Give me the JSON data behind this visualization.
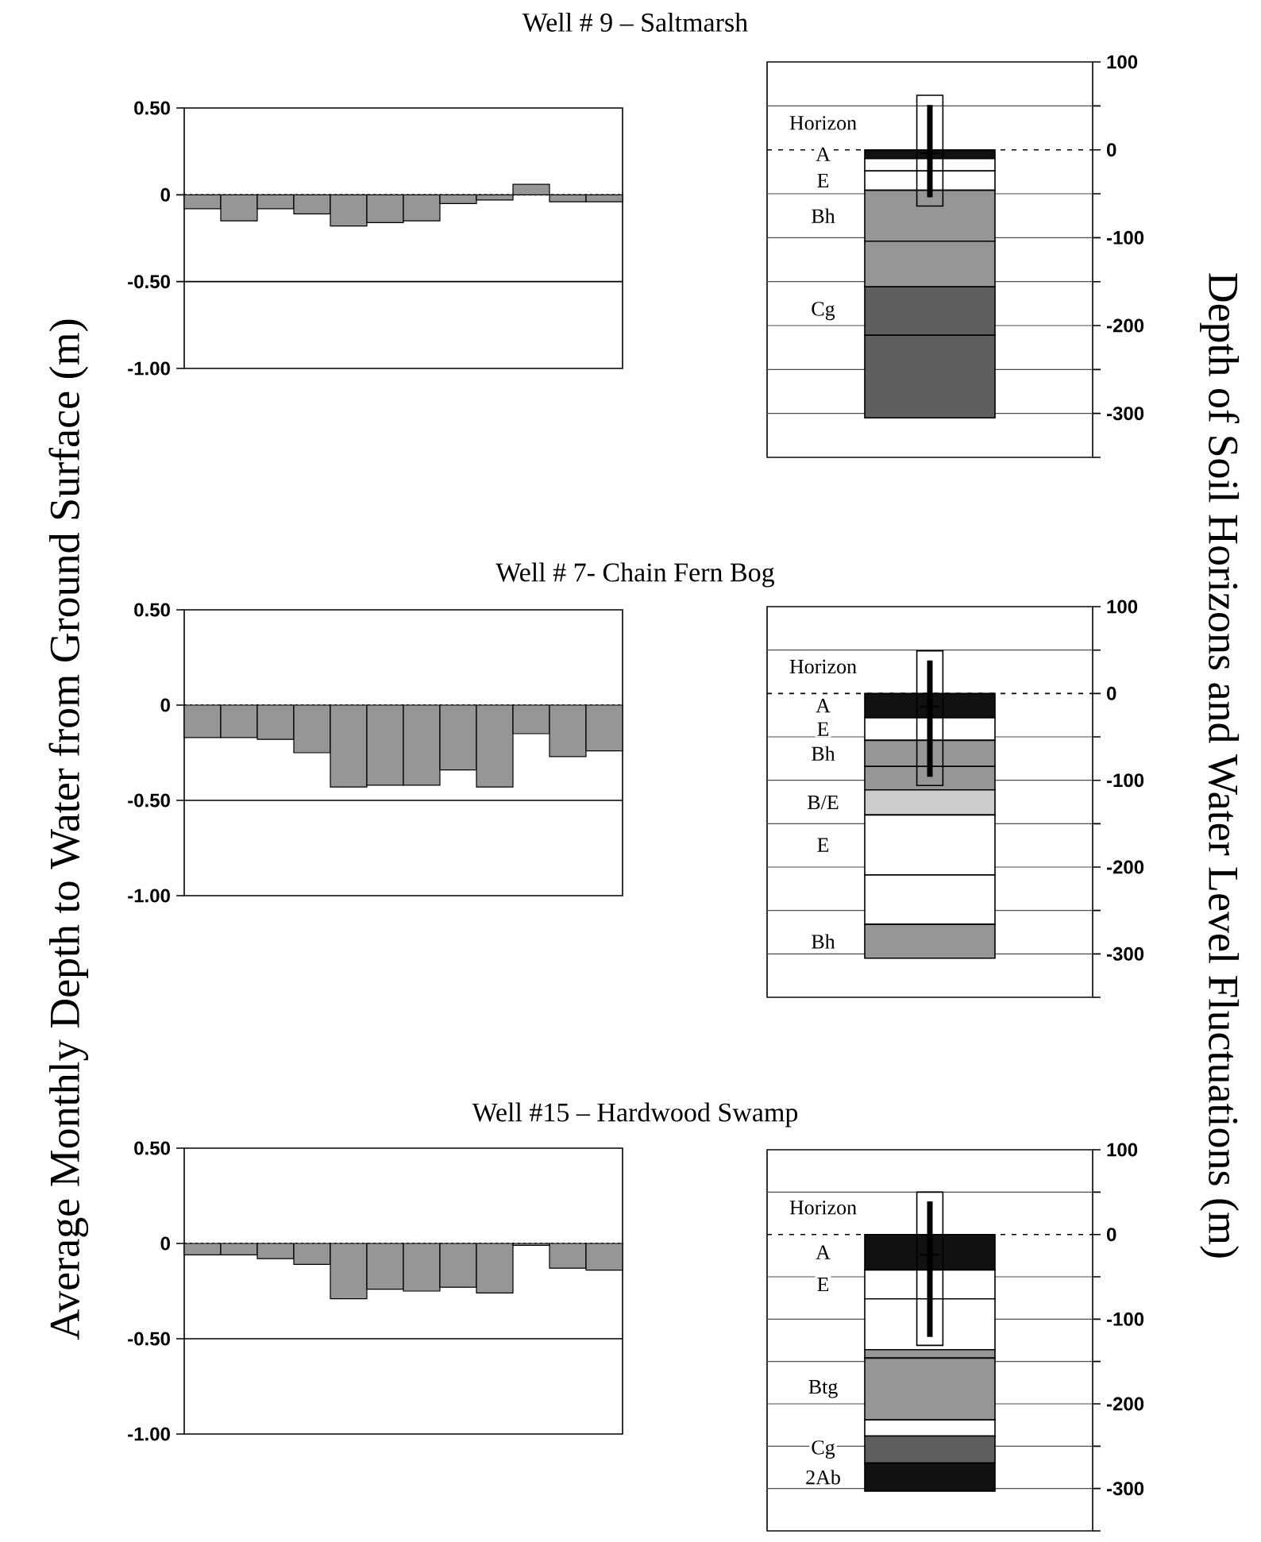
{
  "chart_data": [
    {
      "type": "bar",
      "title": "Well # 9 – Saltmarsh",
      "categories": [
        null,
        null,
        null,
        null,
        null,
        null,
        null,
        null,
        null,
        null,
        null,
        null
      ],
      "values": [
        -0.08,
        -0.15,
        -0.08,
        -0.11,
        -0.18,
        -0.16,
        -0.15,
        -0.05,
        -0.03,
        0.06,
        -0.04,
        -0.04
      ],
      "color": "#969696",
      "ylim": [
        -1,
        0.5
      ],
      "yticks": [
        {
          "value": 0.5,
          "label": "0.50"
        },
        0,
        {
          "value": -0.5,
          "label": "-0.50"
        },
        {
          "value": -1,
          "label": "-1.00"
        }
      ],
      "ref_lines": [
        {
          "axis": "y",
          "value": 0,
          "line_style": "dotted"
        },
        {
          "axis": "y",
          "value": -0.5,
          "line_style": "solid"
        }
      ],
      "tick_labels": "y"
    },
    {
      "type": "bar",
      "stacked": true,
      "categories": [
        null
      ],
      "series": [
        {
          "name": "A",
          "color": "#111111",
          "values": [
            -10
          ]
        },
        {
          "color": "#ffffff",
          "values": [
            -14
          ]
        },
        {
          "name": "E",
          "color": "#ffffff",
          "values": [
            -22
          ]
        },
        {
          "name": "Bh",
          "color": "#969696",
          "values": [
            -58
          ]
        },
        {
          "color": "#969696",
          "values": [
            -52
          ]
        },
        {
          "name": "Cg",
          "color": "#5f5f5f",
          "values": [
            -55
          ]
        },
        {
          "color": "#5f5f5f",
          "values": [
            -94
          ]
        },
        {
          "type": "scatter",
          "color": "#000000",
          "values": [
            -4
          ],
          "errors": [
            [
              -54,
              51
            ]
          ]
        }
      ],
      "ylim": [
        -350,
        100
      ],
      "yticks": [
        100,
        {
          "value": 50,
          "label": null
        },
        0,
        {
          "value": -50,
          "label": null
        },
        -100,
        {
          "value": -150,
          "label": null
        },
        -200,
        {
          "value": -250,
          "label": null
        },
        -300,
        {
          "value": -350,
          "label": null
        }
      ],
      "grid": "y",
      "ref_lines": [
        {
          "axis": "y",
          "value": 0,
          "line_style": "dashed"
        }
      ],
      "annotations": [
        "Horizon"
      ],
      "marker": "cross",
      "tick_labels": "y"
    },
    {
      "type": "bar",
      "title": "Well # 7- Chain Fern Bog",
      "ylabel": "Average Monthly Depth to Water from Ground Surface (m)",
      "categories": [
        null,
        null,
        null,
        null,
        null,
        null,
        null,
        null,
        null,
        null,
        null,
        null
      ],
      "values": [
        -0.17,
        -0.17,
        -0.18,
        -0.25,
        -0.43,
        -0.42,
        -0.42,
        -0.34,
        -0.43,
        -0.15,
        -0.27,
        -0.24
      ],
      "color": "#969696",
      "ylim": [
        -1,
        0.5
      ],
      "yticks": [
        {
          "value": 0.5,
          "label": "0.50"
        },
        0,
        {
          "value": -0.5,
          "label": "-0.50"
        },
        {
          "value": -1,
          "label": "-1.00"
        }
      ],
      "ref_lines": [
        {
          "axis": "y",
          "value": 0,
          "line_style": "dotted"
        },
        {
          "axis": "y",
          "value": -0.5,
          "line_style": "solid"
        }
      ],
      "tick_labels": "y"
    },
    {
      "type": "bar",
      "stacked": true,
      "ylabel": "Depth of Soil Horizons and Water Level Fluctuations (m)",
      "categories": [
        null
      ],
      "series": [
        {
          "name": "A",
          "color": "#111111",
          "values": [
            -28
          ]
        },
        {
          "name": "E",
          "color": "#ffffff",
          "values": [
            -26
          ]
        },
        {
          "name": "Bh",
          "color": "#969696",
          "values": [
            -30
          ]
        },
        {
          "color": "#969696",
          "values": [
            -27
          ]
        },
        {
          "name": "B/E",
          "color": "#cccccc",
          "values": [
            -29
          ]
        },
        {
          "name": "E",
          "color": "#ffffff",
          "values": [
            -69
          ]
        },
        {
          "color": "#ffffff",
          "values": [
            -57
          ]
        },
        {
          "name": "Bh",
          "color": "#969696",
          "values": [
            -39
          ]
        },
        {
          "type": "scatter",
          "color": "#000000",
          "values": [
            -15
          ],
          "errors": [
            [
              -96,
              38
            ]
          ]
        }
      ],
      "ylim": [
        -350,
        100
      ],
      "yticks": [
        100,
        {
          "value": 50,
          "label": null
        },
        0,
        {
          "value": -50,
          "label": null
        },
        -100,
        {
          "value": -150,
          "label": null
        },
        -200,
        {
          "value": -250,
          "label": null
        },
        -300,
        {
          "value": -350,
          "label": null
        }
      ],
      "grid": "y",
      "ref_lines": [
        {
          "axis": "y",
          "value": 0,
          "line_style": "dashed"
        }
      ],
      "annotations": [
        "Horizon"
      ],
      "marker": "cross",
      "tick_labels": "y"
    },
    {
      "type": "bar",
      "title": "Well #15 – Hardwood Swamp",
      "categories": [
        null,
        null,
        null,
        null,
        null,
        null,
        null,
        null,
        null,
        null,
        null,
        null
      ],
      "values": [
        -0.06,
        -0.06,
        -0.08,
        -0.11,
        -0.29,
        -0.24,
        -0.25,
        -0.23,
        -0.26,
        -0.01,
        -0.13,
        -0.14
      ],
      "color": "#969696",
      "ylim": [
        -1,
        0.5
      ],
      "yticks": [
        {
          "value": 0.5,
          "label": "0.50"
        },
        0,
        {
          "value": -0.5,
          "label": "-0.50"
        },
        {
          "value": -1,
          "label": "-1.00"
        }
      ],
      "ref_lines": [
        {
          "axis": "y",
          "value": 0,
          "line_style": "dotted"
        },
        {
          "axis": "y",
          "value": -0.5,
          "line_style": "solid"
        }
      ],
      "tick_labels": "y"
    },
    {
      "type": "bar",
      "stacked": true,
      "categories": [
        null
      ],
      "series": [
        {
          "name": "A",
          "color": "#111111",
          "values": [
            -42
          ]
        },
        {
          "name": "E",
          "color": "#ffffff",
          "values": [
            -34
          ]
        },
        {
          "color": "#ffffff",
          "values": [
            -60
          ]
        },
        {
          "color": "#969696",
          "values": [
            -10
          ]
        },
        {
          "name": "Btg",
          "color": "#969696",
          "values": [
            -73
          ]
        },
        {
          "color": "#ffffff",
          "values": [
            -19
          ]
        },
        {
          "name": "Cg",
          "color": "#5f5f5f",
          "values": [
            -32
          ]
        },
        {
          "name": "2Ab",
          "color": "#111111",
          "values": [
            -33
          ]
        },
        {
          "type": "scatter",
          "color": "#000000",
          "values": [
            -24
          ],
          "errors": [
            [
              -121,
              39
            ]
          ]
        }
      ],
      "ylim": [
        -350,
        100
      ],
      "yticks": [
        100,
        {
          "value": 50,
          "label": null
        },
        0,
        {
          "value": -50,
          "label": null
        },
        -100,
        {
          "value": -150,
          "label": null
        },
        -200,
        {
          "value": -250,
          "label": null
        },
        -300,
        {
          "value": -350,
          "label": null
        }
      ],
      "grid": "y",
      "ref_lines": [
        {
          "axis": "y",
          "value": 0,
          "line_style": "dashed"
        }
      ],
      "annotations": [
        "Horizon"
      ],
      "marker": "cross",
      "tick_labels": "y"
    }
  ]
}
